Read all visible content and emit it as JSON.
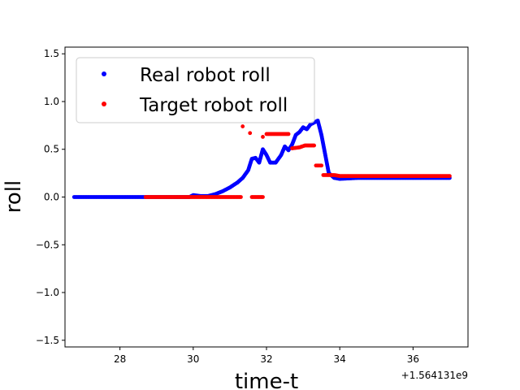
{
  "chart_data": {
    "type": "scatter",
    "title": "",
    "xlabel": "time-t",
    "ylabel": "roll",
    "x_offset_label": "+1.564131e9",
    "xlim": [
      26.5,
      37.5
    ],
    "ylim": [
      -1.57,
      1.57
    ],
    "xticks": [
      28,
      30,
      32,
      34,
      36
    ],
    "xtick_labels": [
      "28",
      "30",
      "32",
      "34",
      "36"
    ],
    "yticks": [
      -1.5,
      -1.0,
      -0.5,
      0.0,
      0.5,
      1.0,
      1.5
    ],
    "ytick_labels": [
      "−1.5",
      "−1.0",
      "−0.5",
      "0.0",
      "0.5",
      "1.0",
      "1.5"
    ],
    "grid": false,
    "legend_position": "upper-left",
    "series": [
      {
        "name": "Real robot roll",
        "color": "#0000ff",
        "marker": "dot",
        "points": [
          [
            26.75,
            0.0
          ],
          [
            27.5,
            0.0
          ],
          [
            28.5,
            0.0
          ],
          [
            29.5,
            0.0
          ],
          [
            29.9,
            0.0
          ],
          [
            30.0,
            0.02
          ],
          [
            30.2,
            0.01
          ],
          [
            30.4,
            0.01
          ],
          [
            30.6,
            0.03
          ],
          [
            30.8,
            0.06
          ],
          [
            31.0,
            0.1
          ],
          [
            31.2,
            0.15
          ],
          [
            31.35,
            0.2
          ],
          [
            31.5,
            0.28
          ],
          [
            31.6,
            0.4
          ],
          [
            31.7,
            0.41
          ],
          [
            31.8,
            0.36
          ],
          [
            31.9,
            0.5
          ],
          [
            32.0,
            0.44
          ],
          [
            32.1,
            0.36
          ],
          [
            32.25,
            0.36
          ],
          [
            32.4,
            0.44
          ],
          [
            32.5,
            0.53
          ],
          [
            32.6,
            0.49
          ],
          [
            32.7,
            0.55
          ],
          [
            32.8,
            0.65
          ],
          [
            32.9,
            0.68
          ],
          [
            33.0,
            0.73
          ],
          [
            33.1,
            0.71
          ],
          [
            33.2,
            0.76
          ],
          [
            33.3,
            0.78
          ],
          [
            33.4,
            0.8
          ],
          [
            33.5,
            0.65
          ],
          [
            33.6,
            0.45
          ],
          [
            33.7,
            0.25
          ],
          [
            33.85,
            0.2
          ],
          [
            34.0,
            0.19
          ],
          [
            34.5,
            0.2
          ],
          [
            35.5,
            0.2
          ],
          [
            37.0,
            0.2
          ]
        ]
      },
      {
        "name": "Target robot roll",
        "color": "#ff0000",
        "marker": "dot",
        "points": [
          [
            28.7,
            0.0
          ],
          [
            29.0,
            0.0
          ],
          [
            29.5,
            0.0
          ],
          [
            29.9,
            0.0
          ],
          [
            30.3,
            0.0
          ],
          [
            30.8,
            0.0
          ],
          [
            31.3,
            0.0
          ],
          [
            31.6,
            0.0
          ],
          [
            31.9,
            0.0
          ],
          [
            31.35,
            0.74
          ],
          [
            31.55,
            0.67
          ],
          [
            31.9,
            0.63
          ],
          [
            32.0,
            0.66
          ],
          [
            32.3,
            0.66
          ],
          [
            32.6,
            0.66
          ],
          [
            32.7,
            0.51
          ],
          [
            32.9,
            0.52
          ],
          [
            33.05,
            0.54
          ],
          [
            33.3,
            0.54
          ],
          [
            33.35,
            0.33
          ],
          [
            33.5,
            0.33
          ],
          [
            33.55,
            0.23
          ],
          [
            33.85,
            0.23
          ],
          [
            34.0,
            0.22
          ],
          [
            34.5,
            0.22
          ],
          [
            35.0,
            0.22
          ],
          [
            35.5,
            0.22
          ],
          [
            36.0,
            0.22
          ],
          [
            36.5,
            0.22
          ],
          [
            37.0,
            0.22
          ]
        ]
      }
    ]
  }
}
